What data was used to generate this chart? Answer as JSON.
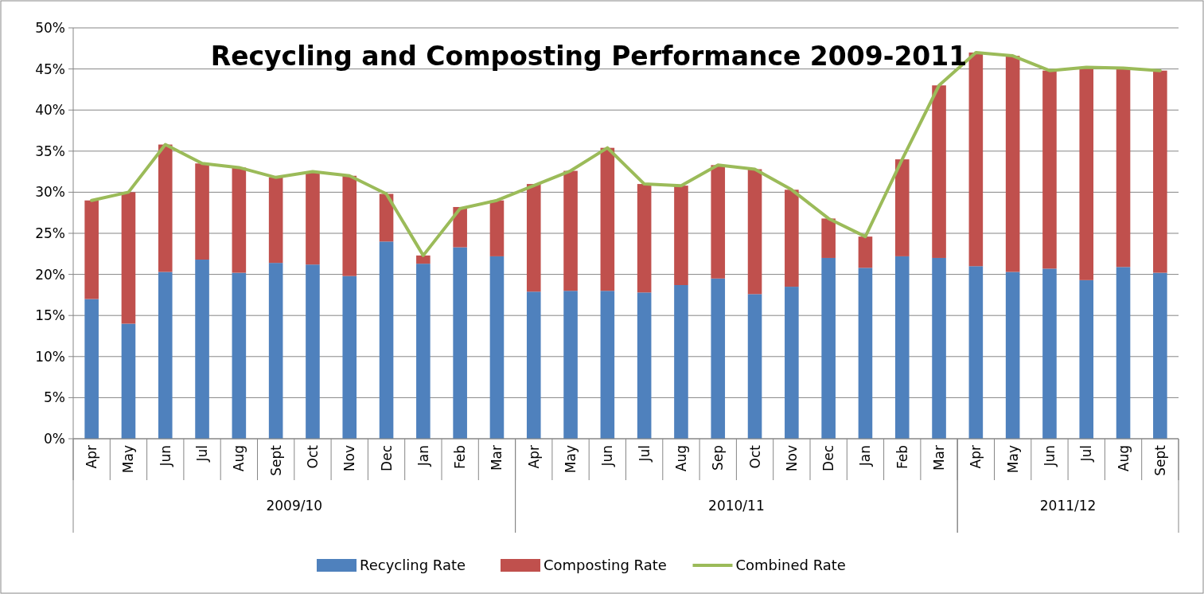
{
  "chart_data": {
    "type": "bar",
    "title": "Recycling and Composting Performance 2009-2011",
    "stacked": true,
    "categories": [
      "Apr",
      "May",
      "Jun",
      "Jul",
      "Aug",
      "Sept",
      "Oct",
      "Nov",
      "Dec",
      "Jan",
      "Feb",
      "Mar",
      "Apr",
      "May",
      "Jun",
      "Jul",
      "Aug",
      "Sep",
      "Oct",
      "Nov",
      "Dec",
      "Jan",
      "Feb",
      "Mar",
      "Apr",
      "May",
      "Jun",
      "Jul",
      "Aug",
      "Sept"
    ],
    "series": [
      {
        "name": "Recycling Rate",
        "color": "#4f81bd",
        "values": [
          17,
          14,
          20.3,
          21.8,
          20.2,
          21.4,
          21.2,
          19.8,
          24,
          21.3,
          23.3,
          22.2,
          17.9,
          18,
          18,
          17.8,
          18.7,
          19.5,
          17.6,
          18.5,
          22,
          20.8,
          22.2,
          22,
          21,
          20.3,
          20.7,
          19.3,
          20.9,
          20.2
        ]
      },
      {
        "name": "Composting Rate",
        "color": "#c0504d",
        "values": [
          12,
          16,
          15.5,
          11.7,
          12.8,
          10.4,
          11.3,
          12.2,
          5.8,
          1,
          4.9,
          6.8,
          13.1,
          14.6,
          17.4,
          13.2,
          12.1,
          13.8,
          15.2,
          11.8,
          4.8,
          3.8,
          11.8,
          21,
          26,
          26.3,
          24.1,
          25.9,
          24.2,
          24.6
        ]
      },
      {
        "name": "Combined Rate",
        "type": "line",
        "color": "#9bbb59",
        "values": [
          29,
          30,
          35.8,
          33.5,
          33,
          31.8,
          32.5,
          32,
          29.8,
          22.3,
          28,
          29,
          30.8,
          32.6,
          35.4,
          31,
          30.8,
          33.3,
          32.8,
          30.3,
          26.8,
          24.6,
          34,
          43,
          47,
          46.6,
          44.8,
          45.2,
          45.1,
          44.8
        ]
      }
    ],
    "ylim": [
      0,
      50
    ],
    "yticks": [
      {
        "value": 0,
        "label": "0%"
      },
      {
        "value": 5,
        "label": "5%"
      },
      {
        "value": 10,
        "label": "10%"
      },
      {
        "value": 15,
        "label": "15%"
      },
      {
        "value": 20,
        "label": "20%"
      },
      {
        "value": 25,
        "label": "25%"
      },
      {
        "value": 30,
        "label": "30%"
      },
      {
        "value": 35,
        "label": "35%"
      },
      {
        "value": 40,
        "label": "40%"
      },
      {
        "value": 45,
        "label": "45%"
      },
      {
        "value": 50,
        "label": "50%"
      }
    ],
    "annotations": [
      "2009/10",
      "2010/11",
      "2011/12"
    ],
    "grid": "y",
    "legend": "bottom",
    "marker": "none",
    "line_style": "solid"
  }
}
